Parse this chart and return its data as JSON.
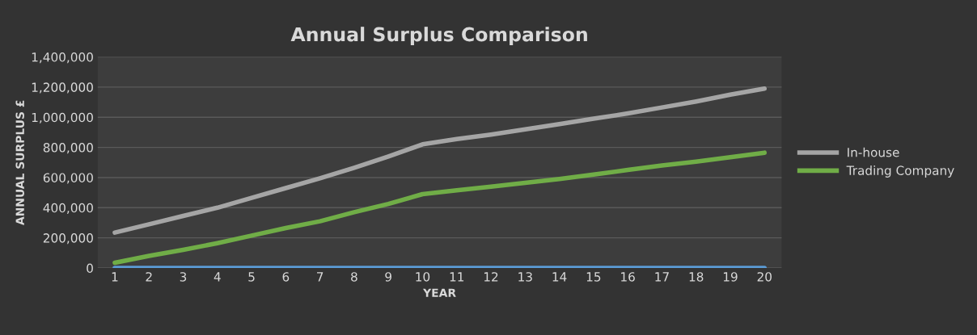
{
  "chart_data": {
    "type": "line",
    "title": "Annual Surplus Comparison",
    "xlabel": "YEAR",
    "ylabel": "ANNUAL SURPLUS £",
    "categories": [
      "1",
      "2",
      "3",
      "4",
      "5",
      "6",
      "7",
      "8",
      "9",
      "10",
      "11",
      "12",
      "13",
      "14",
      "15",
      "16",
      "17",
      "18",
      "19",
      "20"
    ],
    "series": [
      {
        "name": "In-house",
        "color": "#a5a5a5",
        "values": [
          235000,
          290000,
          345000,
          400000,
          465000,
          530000,
          595000,
          665000,
          740000,
          820000,
          855000,
          885000,
          920000,
          955000,
          990000,
          1025000,
          1065000,
          1105000,
          1150000,
          1190000
        ]
      },
      {
        "name": "Trading Company",
        "color": "#70ad47",
        "values": [
          35000,
          80000,
          120000,
          165000,
          215000,
          265000,
          310000,
          370000,
          425000,
          490000,
          515000,
          540000,
          565000,
          590000,
          620000,
          650000,
          680000,
          705000,
          735000,
          765000
        ]
      },
      {
        "color": "#5b9bd5",
        "values": [
          0,
          0,
          0,
          0,
          0,
          0,
          0,
          0,
          0,
          0,
          0,
          0,
          0,
          0,
          0,
          0,
          0,
          0,
          0,
          0
        ]
      }
    ],
    "ylim": [
      0,
      1400000
    ],
    "yticks": [
      {
        "value": 0,
        "label": "0"
      },
      {
        "value": 200000,
        "label": "200,000"
      },
      {
        "value": 400000,
        "label": "400,000"
      },
      {
        "value": 600000,
        "label": "600,000"
      },
      {
        "value": 800000,
        "label": "800,000"
      },
      {
        "value": 1000000,
        "label": "1,000,000"
      },
      {
        "value": 1200000,
        "label": "1,200,000"
      },
      {
        "value": 1400000,
        "label": "1,400,000"
      }
    ],
    "grid": "y",
    "legend": "right",
    "marker": "none",
    "line_style": "solid"
  }
}
